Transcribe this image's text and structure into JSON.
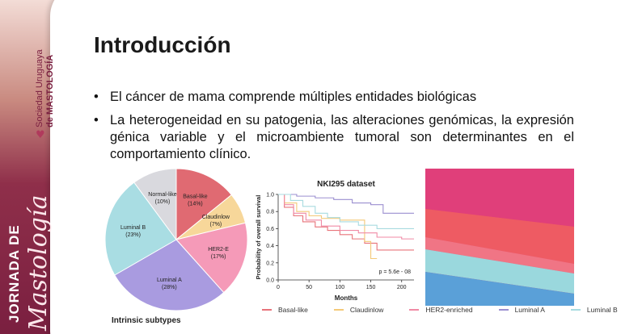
{
  "sidebar": {
    "org_line1": "Sociedad Uruguaya",
    "org_line2": "de MASTOLOGÍA",
    "jornada": "JORNADA DE",
    "mastologia": "Mastología"
  },
  "slide": {
    "title": "Introducción",
    "bullets": [
      "El cáncer de mama comprende múltiples entidades biológicas",
      "La heterogeneidad en su patogenia, las alteraciones genómicas, la expresión génica variable y el microambiente tumoral son determinantes en el comportamiento clínico."
    ]
  },
  "figure": {
    "pie_caption": "Intrinsic subtypes",
    "km_title": "NKI295 dataset",
    "km_ylabel": "Probability of overall survival",
    "km_xlabel": "Months",
    "km_pvalue": "p = 5.6e - 08",
    "legend": [
      {
        "label": "Basal-like",
        "color": "#e8737a"
      },
      {
        "label": "Claudinlow",
        "color": "#f4c979"
      },
      {
        "label": "HER2-enriched",
        "color": "#f08aa5"
      },
      {
        "label": "Luminal A",
        "color": "#9b8fd0"
      },
      {
        "label": "Luminal B",
        "color": "#a8dbe0"
      }
    ]
  },
  "chart_data": [
    {
      "type": "pie",
      "title": "Intrinsic subtypes",
      "labels": [
        "Basal-like (14%)",
        "Claudinlow (7%)",
        "HER2-E (17%)",
        "Luminal A (28%)",
        "Luminal B (23%)",
        "Normal-like (10%)"
      ],
      "values": [
        14,
        7,
        17,
        28,
        23,
        10
      ],
      "colors": [
        "#e06a72",
        "#f7d79a",
        "#f59ab8",
        "#a99be0",
        "#a9dde3",
        "#d9d9de"
      ]
    },
    {
      "type": "line",
      "title": "NKI295 dataset",
      "xlabel": "Months",
      "ylabel": "Probability of overall survival",
      "xlim": [
        0,
        220
      ],
      "ylim": [
        0,
        1.0
      ],
      "xticks": [
        0,
        50,
        100,
        150,
        200
      ],
      "yticks": [
        0,
        0.2,
        0.4,
        0.6,
        0.8,
        1.0
      ],
      "annotation": "p = 5.6e - 08",
      "series": [
        {
          "name": "Basal-like",
          "color": "#e8737a",
          "x": [
            0,
            10,
            25,
            40,
            60,
            80,
            100,
            120,
            140,
            160,
            220
          ],
          "y": [
            1.0,
            0.85,
            0.75,
            0.68,
            0.62,
            0.58,
            0.53,
            0.48,
            0.43,
            0.35,
            0.35
          ]
        },
        {
          "name": "Claudinlow",
          "color": "#f4c979",
          "x": [
            0,
            10,
            30,
            50,
            70,
            100,
            130,
            140,
            150,
            160
          ],
          "y": [
            1.0,
            0.9,
            0.8,
            0.75,
            0.72,
            0.7,
            0.7,
            0.45,
            0.25,
            0.25
          ]
        },
        {
          "name": "HER2-enriched",
          "color": "#f08aa5",
          "x": [
            0,
            10,
            25,
            45,
            70,
            100,
            130,
            160,
            200,
            220
          ],
          "y": [
            1.0,
            0.88,
            0.78,
            0.7,
            0.63,
            0.58,
            0.55,
            0.5,
            0.48,
            0.48
          ]
        },
        {
          "name": "Luminal A",
          "color": "#9b8fd0",
          "x": [
            0,
            30,
            60,
            90,
            120,
            150,
            170,
            200,
            220
          ],
          "y": [
            1.0,
            0.98,
            0.96,
            0.94,
            0.9,
            0.88,
            0.78,
            0.78,
            0.78
          ]
        },
        {
          "name": "Luminal B",
          "color": "#a8dbe0",
          "x": [
            0,
            20,
            40,
            60,
            80,
            100,
            130,
            160,
            220
          ],
          "y": [
            1.0,
            0.93,
            0.86,
            0.78,
            0.73,
            0.68,
            0.64,
            0.6,
            0.6
          ]
        }
      ]
    }
  ]
}
